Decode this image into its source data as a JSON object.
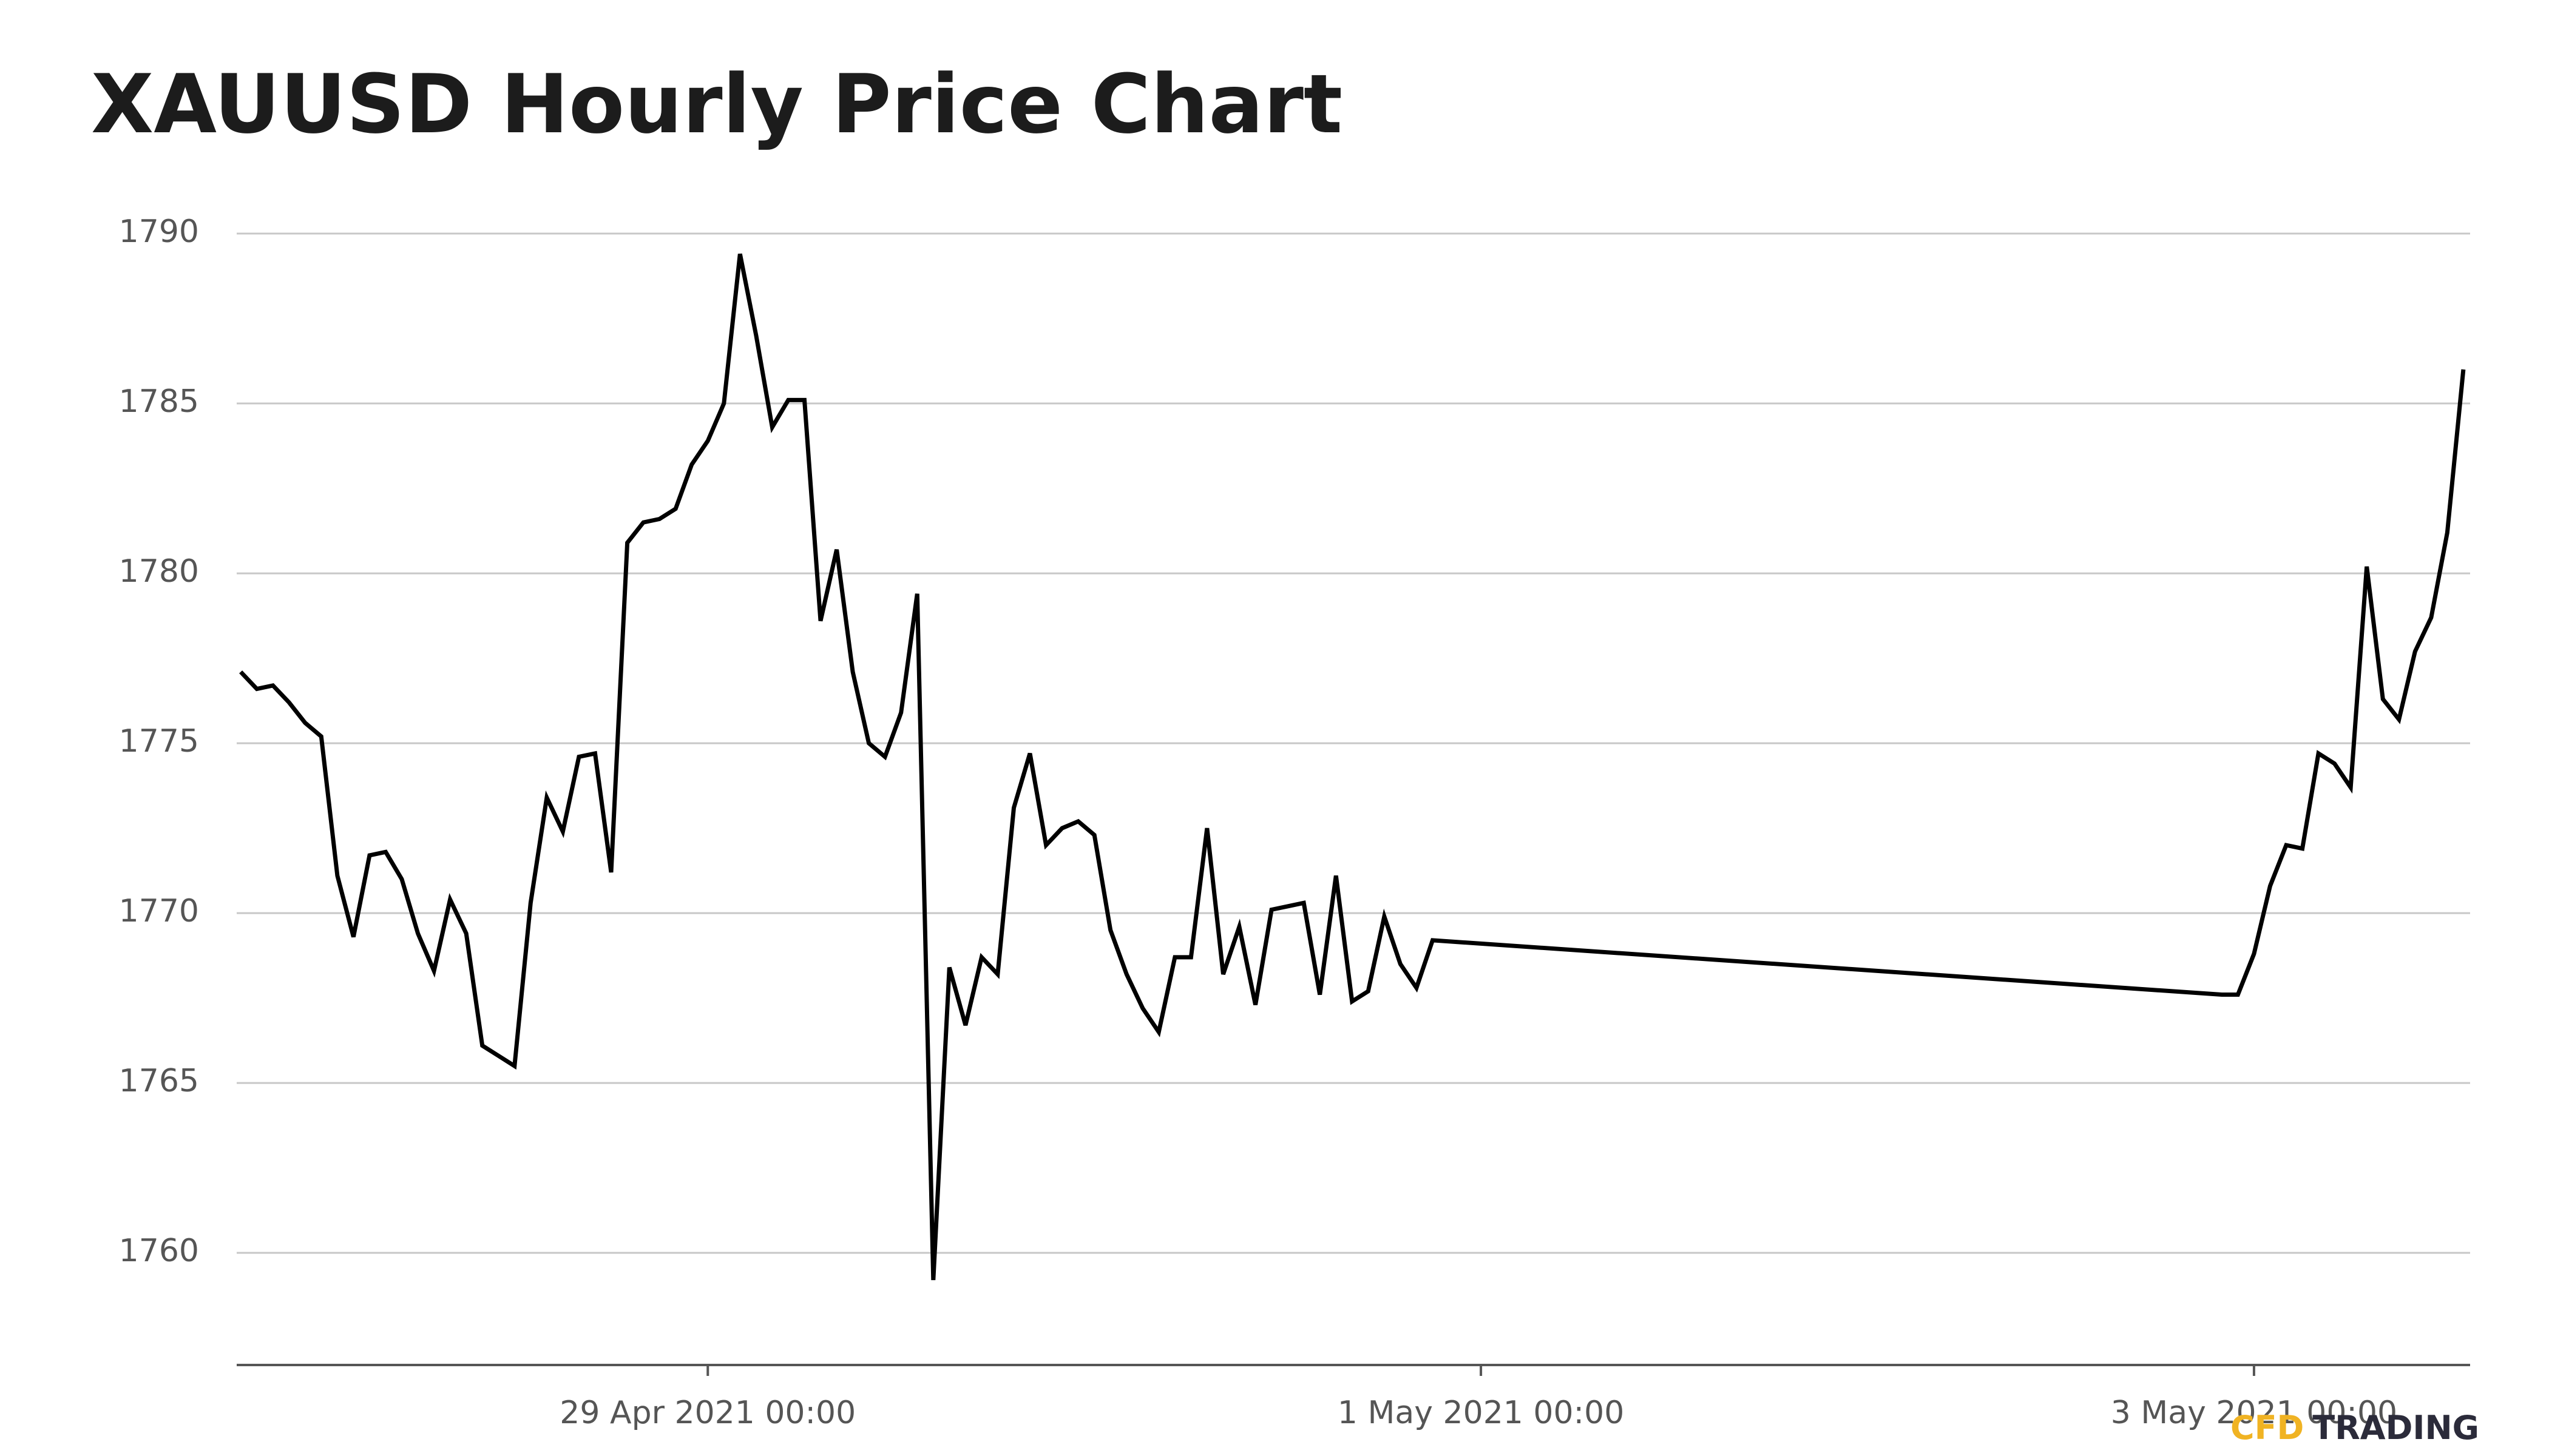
{
  "chart_data": {
    "type": "line",
    "title": "XAUUSD Hourly Price Chart",
    "logo": [
      "CFD",
      "TRADING"
    ],
    "x": [
      "2021-04-27 19:00",
      "2021-04-27 20:00",
      "2021-04-27 21:00",
      "2021-04-27 22:00",
      "2021-04-27 23:00",
      "2021-04-28 00:00",
      "2021-04-28 01:00",
      "2021-04-28 02:00",
      "2021-04-28 03:00",
      "2021-04-28 04:00",
      "2021-04-28 05:00",
      "2021-04-28 06:00",
      "2021-04-28 07:00",
      "2021-04-28 08:00",
      "2021-04-28 09:00",
      "2021-04-28 10:00",
      "2021-04-28 11:00",
      "2021-04-28 12:00",
      "2021-04-28 13:00",
      "2021-04-28 14:00",
      "2021-04-28 15:00",
      "2021-04-28 16:00",
      "2021-04-28 17:00",
      "2021-04-28 18:00",
      "2021-04-28 19:00",
      "2021-04-28 20:00",
      "2021-04-28 21:00",
      "2021-04-28 22:00",
      "2021-04-28 23:00",
      "2021-04-29 00:00",
      "2021-04-29 01:00",
      "2021-04-29 02:00",
      "2021-04-29 03:00",
      "2021-04-29 04:00",
      "2021-04-29 05:00",
      "2021-04-29 06:00",
      "2021-04-29 07:00",
      "2021-04-29 08:00",
      "2021-04-29 09:00",
      "2021-04-29 10:00",
      "2021-04-29 11:00",
      "2021-04-29 12:00",
      "2021-04-29 13:00",
      "2021-04-29 14:00",
      "2021-04-29 15:00",
      "2021-04-29 16:00",
      "2021-04-29 17:00",
      "2021-04-29 18:00",
      "2021-04-29 19:00",
      "2021-04-29 20:00",
      "2021-04-29 21:00",
      "2021-04-29 22:00",
      "2021-04-29 23:00",
      "2021-04-30 00:00",
      "2021-04-30 01:00",
      "2021-04-30 02:00",
      "2021-04-30 03:00",
      "2021-04-30 04:00",
      "2021-04-30 05:00",
      "2021-04-30 06:00",
      "2021-04-30 07:00",
      "2021-04-30 08:00",
      "2021-04-30 09:00",
      "2021-04-30 10:00",
      "2021-04-30 11:00",
      "2021-04-30 12:00",
      "2021-04-30 13:00",
      "2021-04-30 14:00",
      "2021-04-30 15:00",
      "2021-04-30 16:00",
      "2021-04-30 17:00",
      "2021-04-30 18:00",
      "2021-04-30 19:00",
      "2021-04-30 20:00",
      "2021-04-30 21:00",
      "2021-05-02 22:00",
      "2021-05-02 23:00",
      "2021-05-03 00:00",
      "2021-05-03 01:00",
      "2021-05-03 02:00",
      "2021-05-03 03:00",
      "2021-05-03 04:00",
      "2021-05-03 05:00",
      "2021-05-03 06:00",
      "2021-05-03 07:00",
      "2021-05-03 08:00",
      "2021-05-03 09:00",
      "2021-05-03 10:00",
      "2021-05-03 11:00",
      "2021-05-03 12:00",
      "2021-05-03 13:00"
    ],
    "series": [
      {
        "color": "#000000",
        "values": [
          1777.1,
          1776.6,
          1776.7,
          1776.2,
          1775.6,
          1775.2,
          1771.1,
          1769.3,
          1771.7,
          1771.8,
          1771.0,
          1769.4,
          1768.3,
          1770.4,
          1769.4,
          1766.1,
          1765.8,
          1765.5,
          1770.3,
          1773.4,
          1772.4,
          1774.6,
          1774.7,
          1771.2,
          1780.9,
          1781.5,
          1781.6,
          1781.9,
          1783.2,
          1783.9,
          1785.0,
          1789.4,
          1787.0,
          1784.3,
          1785.1,
          1785.1,
          1778.6,
          1780.7,
          1777.1,
          1775.0,
          1774.6,
          1775.9,
          1779.4,
          1759.2,
          1768.4,
          1766.7,
          1768.7,
          1768.2,
          1773.1,
          1774.7,
          1772.0,
          1772.5,
          1772.7,
          1772.3,
          1769.5,
          1768.2,
          1767.2,
          1766.5,
          1768.7,
          1768.7,
          1772.5,
          1768.2,
          1769.6,
          1767.3,
          1770.1,
          1770.2,
          1770.3,
          1767.6,
          1771.1,
          1767.4,
          1767.7,
          1769.9,
          1768.5,
          1767.8,
          1769.2,
          1767.6,
          1767.6,
          1768.8,
          1770.8,
          1772.0,
          1771.9,
          1774.7,
          1774.4,
          1773.7,
          1780.2,
          1776.3,
          1775.7,
          1777.7,
          1778.7,
          1781.2,
          1786.0
        ]
      }
    ],
    "xlim": [
      "2021-04-27 18:45",
      "2021-05-03 13:25"
    ],
    "xticks": [
      {
        "value": "2021-04-29 00:00",
        "label": "29 Apr 2021 00:00"
      },
      {
        "value": "2021-05-01 00:00",
        "label": "1 May 2021 00:00"
      },
      {
        "value": "2021-05-03 00:00",
        "label": "3 May 2021 00:00"
      }
    ],
    "ylim": [
      1756.7,
      1791
    ],
    "yticks": [
      1760,
      1765,
      1770,
      1775,
      1780,
      1785,
      1790
    ],
    "grid": true
  }
}
